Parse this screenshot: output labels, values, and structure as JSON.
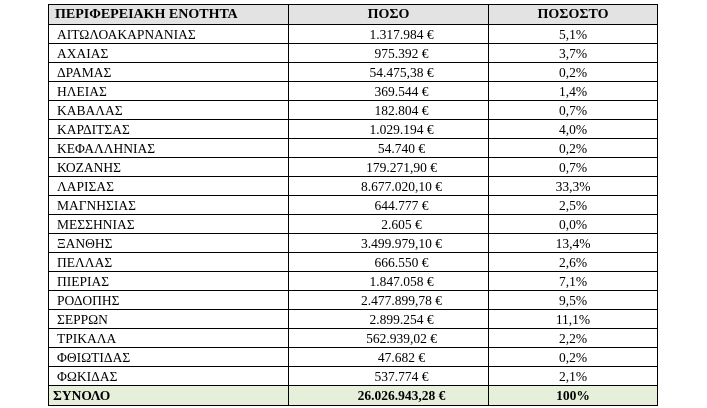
{
  "table": {
    "headers": {
      "region": "ΠΕΡΙΦΕΡΕΙΑΚΗ ΕΝΟΤΗΤΑ",
      "amount": "ΠΟΣΟ",
      "percent": "ΠΟΣΟΣΤΟ"
    },
    "rows": [
      {
        "region": "ΑΙΤΩΛΟΑΚΑΡΝΑΝΙΑΣ",
        "amount": "1.317.984 €",
        "percent": "5,1%"
      },
      {
        "region": "ΑΧΑΙΑΣ",
        "amount": "975.392 €",
        "percent": "3,7%"
      },
      {
        "region": "ΔΡΑΜΑΣ",
        "amount": "54.475,38 €",
        "percent": "0,2%"
      },
      {
        "region": "ΗΛΕΙΑΣ",
        "amount": "369.544 €",
        "percent": "1,4%"
      },
      {
        "region": "ΚΑΒΑΛΑΣ",
        "amount": "182.804 €",
        "percent": "0,7%"
      },
      {
        "region": "ΚΑΡΔΙΤΣΑΣ",
        "amount": "1.029.194 €",
        "percent": "4,0%"
      },
      {
        "region": "ΚΕΦΑΛΛΗΝΙΑΣ",
        "amount": "54.740 €",
        "percent": "0,2%"
      },
      {
        "region": "ΚΟΖΑΝΗΣ",
        "amount": "179.271,90 €",
        "percent": "0,7%"
      },
      {
        "region": "ΛΑΡΙΣΑΣ",
        "amount": "8.677.020,10 €",
        "percent": "33,3%"
      },
      {
        "region": "ΜΑΓΝΗΣΙΑΣ",
        "amount": "644.777 €",
        "percent": "2,5%"
      },
      {
        "region": "ΜΕΣΣΗΝΙΑΣ",
        "amount": "2.605 €",
        "percent": "0,0%"
      },
      {
        "region": "ΞΑΝΘΗΣ",
        "amount": "3.499.979,10 €",
        "percent": "13,4%"
      },
      {
        "region": "ΠΕΛΛΑΣ",
        "amount": "666.550 €",
        "percent": "2,6%"
      },
      {
        "region": "ΠΙΕΡΙΑΣ",
        "amount": "1.847.058 €",
        "percent": "7,1%"
      },
      {
        "region": "ΡΟΔΟΠΗΣ",
        "amount": "2.477.899,78 €",
        "percent": "9,5%"
      },
      {
        "region": "ΣΕΡΡΩΝ",
        "amount": "2.899.254 €",
        "percent": "11,1%"
      },
      {
        "region": "ΤΡΙΚΑΛΑ",
        "amount": "562.939,02 €",
        "percent": "2,2%"
      },
      {
        "region": "ΦΘΙΩΤΙΔΑΣ",
        "amount": "47.682 €",
        "percent": "0,2%"
      },
      {
        "region": "ΦΩΚΙΔΑΣ",
        "amount": "537.774 €",
        "percent": "2,1%"
      }
    ],
    "total": {
      "label": "ΣΥΝΟΛΟ",
      "amount": "26.026.943,28 €",
      "percent": "100%"
    },
    "colors": {
      "header_bg": "#e3e3e3",
      "total_bg": "#e6efda",
      "border": "#000000"
    }
  }
}
